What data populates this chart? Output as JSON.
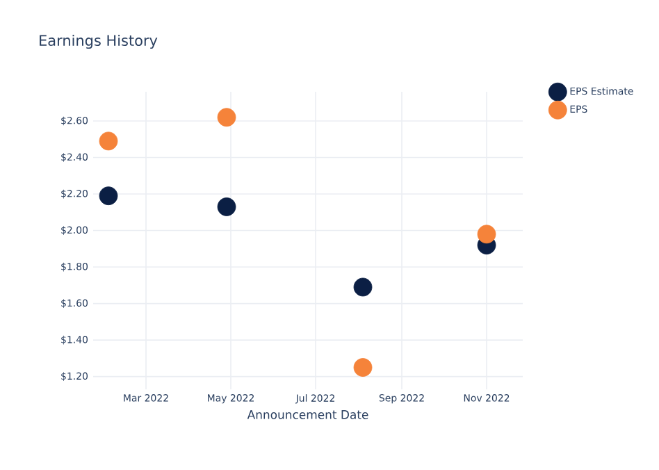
{
  "chart_data": {
    "type": "scatter",
    "title": "Earnings History",
    "xlabel": "Announcement Date",
    "x": [
      "2022-02-02",
      "2022-04-28",
      "2022-08-04",
      "2022-11-01"
    ],
    "series": [
      {
        "name": "EPS Estimate",
        "color": "#0b1f44",
        "values": [
          2.19,
          2.13,
          1.69,
          1.92
        ]
      },
      {
        "name": "EPS",
        "color": "#f5833a",
        "values": [
          2.49,
          2.62,
          1.25,
          1.98
        ]
      }
    ],
    "xlim": [
      "2022-01-22",
      "2022-11-27"
    ],
    "xticks": [
      {
        "value": "2022-03-01",
        "label": "Mar 2022"
      },
      {
        "value": "2022-05-01",
        "label": "May 2022"
      },
      {
        "value": "2022-07-01",
        "label": "Jul 2022"
      },
      {
        "value": "2022-09-01",
        "label": "Sep 2022"
      },
      {
        "value": "2022-11-01",
        "label": "Nov 2022"
      }
    ],
    "ylim": [
      1.13,
      2.76
    ],
    "yticks": [
      {
        "value": 1.2,
        "label": "$1.20"
      },
      {
        "value": 1.4,
        "label": "$1.40"
      },
      {
        "value": 1.6,
        "label": "$1.60"
      },
      {
        "value": 1.8,
        "label": "$1.80"
      },
      {
        "value": 2.0,
        "label": "$2.00"
      },
      {
        "value": 2.2,
        "label": "$2.20"
      },
      {
        "value": 2.4,
        "label": "$2.40"
      },
      {
        "value": 2.6,
        "label": "$2.60"
      }
    ],
    "grid": true,
    "legend": "top right"
  }
}
